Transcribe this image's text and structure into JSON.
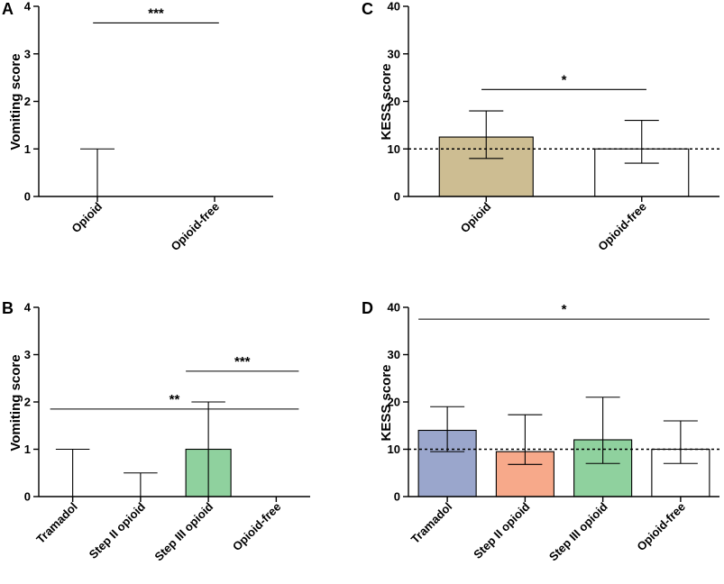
{
  "chart_data": [
    {
      "panel": "A",
      "type": "bar",
      "ylabel": "Vomiting score",
      "ylim": [
        0,
        4
      ],
      "yticks": [
        0,
        1,
        2,
        3,
        4
      ],
      "categories": [
        "Opioid",
        "Opioid-free"
      ],
      "values": [
        0,
        0
      ],
      "error_low": [
        0,
        0
      ],
      "error_high": [
        1,
        0
      ],
      "colors": [
        "#ffffff",
        "#ffffff"
      ],
      "significance": [
        {
          "from": 0,
          "to": 1,
          "level": 3.65,
          "label": "***"
        }
      ]
    },
    {
      "panel": "C",
      "type": "bar",
      "ylabel": "KESS score",
      "ylim": [
        0,
        40
      ],
      "yticks": [
        0,
        10,
        20,
        30,
        40
      ],
      "categories": [
        "Opioid",
        "Opioid-free"
      ],
      "values": [
        12.5,
        10
      ],
      "error_low": [
        8,
        7
      ],
      "error_high": [
        18,
        16
      ],
      "colors": [
        "#cdbd92",
        "#ffffff"
      ],
      "reference_line": 10,
      "significance": [
        {
          "from": 0,
          "to": 1,
          "level": 22.5,
          "label": "*"
        }
      ]
    },
    {
      "panel": "B",
      "type": "bar",
      "ylabel": "Vomiting score",
      "ylim": [
        0,
        4
      ],
      "yticks": [
        0,
        1,
        2,
        3,
        4
      ],
      "categories": [
        "Tramadol",
        "Step II opioid",
        "Step III opioid",
        "Opioid-free"
      ],
      "values": [
        0,
        0,
        1,
        0
      ],
      "error_low": [
        0,
        0,
        0,
        0
      ],
      "error_high": [
        1,
        0.5,
        2,
        0
      ],
      "colors": [
        "#ffffff",
        "#ffffff",
        "#8fd19e",
        "#ffffff"
      ],
      "significance": [
        {
          "from": 2,
          "to": 3,
          "level": 2.65,
          "label": "***"
        },
        {
          "from": 0,
          "to": 3,
          "level": 1.85,
          "label": "**"
        }
      ]
    },
    {
      "panel": "D",
      "type": "bar",
      "ylabel": "KESS score",
      "ylim": [
        0,
        40
      ],
      "yticks": [
        0,
        10,
        20,
        30,
        40
      ],
      "categories": [
        "Tramadol",
        "Step II opioid",
        "Step III opioid",
        "Opioid-free"
      ],
      "values": [
        14,
        9.5,
        12,
        10
      ],
      "error_low": [
        9.5,
        6.8,
        7,
        7
      ],
      "error_high": [
        19,
        17.3,
        21,
        16
      ],
      "colors": [
        "#9aa6cc",
        "#f7a98a",
        "#8fd19e",
        "#ffffff"
      ],
      "reference_line": 10,
      "significance": [
        {
          "from": 0,
          "to": 3,
          "level": 37.5,
          "label": "*"
        }
      ]
    }
  ]
}
